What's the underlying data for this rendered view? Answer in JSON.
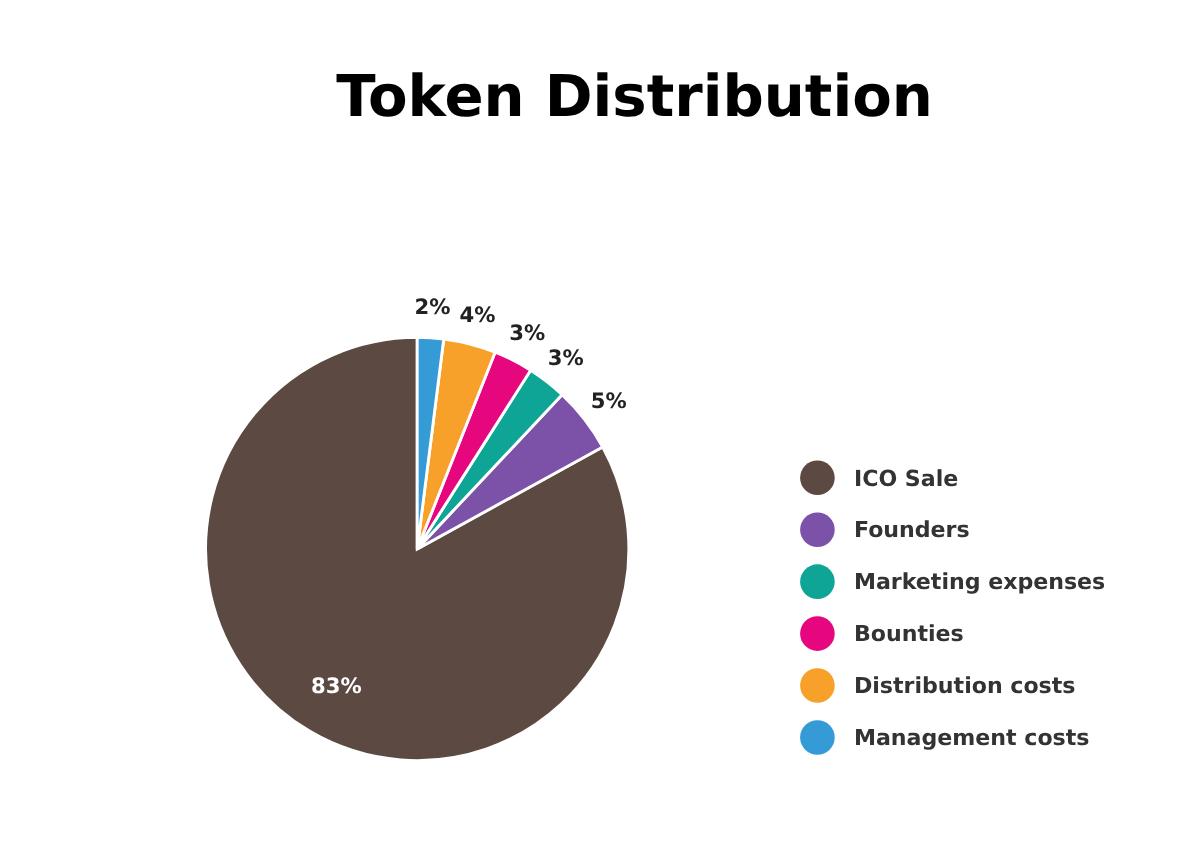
{
  "chart_data": {
    "type": "pie",
    "title": "Token Distribution",
    "categories": [
      "ICO Sale",
      "Founders",
      "Marketing expenses",
      "Bounties",
      "Distribution costs",
      "Management costs"
    ],
    "values": [
      83,
      5,
      3,
      3,
      4,
      2
    ],
    "colors": [
      "#5c4a42",
      "#7b52a8",
      "#0ea597",
      "#e6077f",
      "#f8a12a",
      "#359bd6"
    ],
    "value_labels": [
      "83%",
      "5%",
      "3%",
      "3%",
      "4%",
      "2%"
    ],
    "legend": "right"
  }
}
